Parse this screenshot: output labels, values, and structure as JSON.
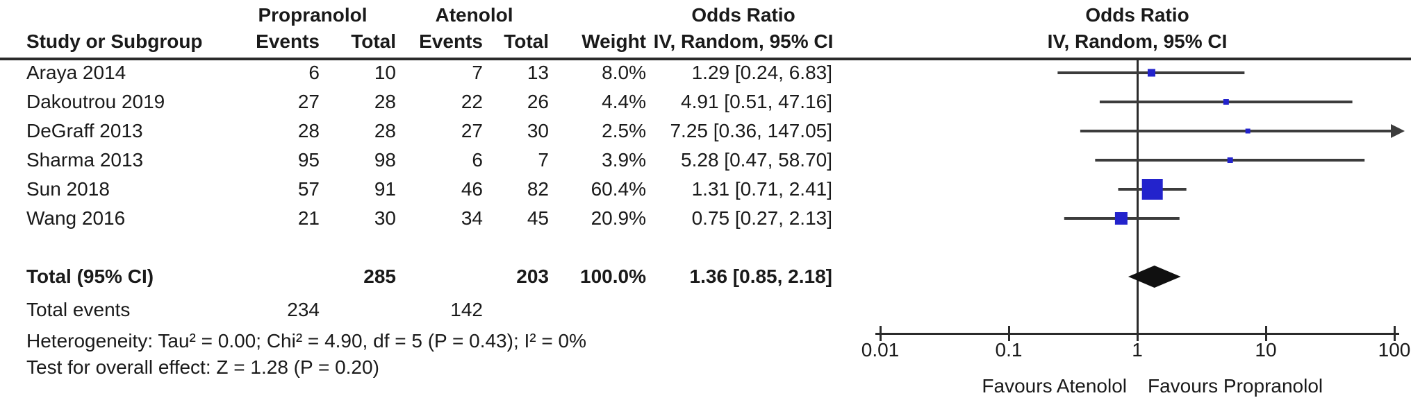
{
  "header": {
    "group1": "Propranolol",
    "group2": "Atenolol",
    "or": "Odds Ratio",
    "effect": "IV, Random, 95% CI",
    "study": "Study or Subgroup",
    "events": "Events",
    "total": "Total",
    "weight": "Weight"
  },
  "chart_data": {
    "type": "scatter",
    "subtype": "forest-plot",
    "title": "Odds Ratio",
    "effect_measure": "IV, Random, 95% CI",
    "x_scale": "log",
    "xlim": [
      0.01,
      100
    ],
    "x_ticks": [
      "0.01",
      "0.1",
      "1",
      "10",
      "100"
    ],
    "favours_left": "Favours Atenolol",
    "favours_right": "Favours Propranolol",
    "studies": [
      {
        "name": "Araya 2014",
        "events1": "6",
        "total1": "10",
        "events2": "7",
        "total2": "13",
        "weight": "8.0%",
        "weight_pct": 8.0,
        "ci_label": "1.29 [0.24, 6.83]",
        "or": 1.29,
        "ci_low": 0.24,
        "ci_high": 6.83
      },
      {
        "name": "Dakoutrou 2019",
        "events1": "27",
        "total1": "28",
        "events2": "22",
        "total2": "26",
        "weight": "4.4%",
        "weight_pct": 4.4,
        "ci_label": "4.91 [0.51, 47.16]",
        "or": 4.91,
        "ci_low": 0.51,
        "ci_high": 47.16
      },
      {
        "name": "DeGraff 2013",
        "events1": "28",
        "total1": "28",
        "events2": "27",
        "total2": "30",
        "weight": "2.5%",
        "weight_pct": 2.5,
        "ci_label": "7.25 [0.36, 147.05]",
        "or": 7.25,
        "ci_low": 0.36,
        "ci_high": 147.05
      },
      {
        "name": "Sharma 2013",
        "events1": "95",
        "total1": "98",
        "events2": "6",
        "total2": "7",
        "weight": "3.9%",
        "weight_pct": 3.9,
        "ci_label": "5.28 [0.47, 58.70]",
        "or": 5.28,
        "ci_low": 0.47,
        "ci_high": 58.7
      },
      {
        "name": "Sun 2018",
        "events1": "57",
        "total1": "91",
        "events2": "46",
        "total2": "82",
        "weight": "60.4%",
        "weight_pct": 60.4,
        "ci_label": "1.31 [0.71, 2.41]",
        "or": 1.31,
        "ci_low": 0.71,
        "ci_high": 2.41
      },
      {
        "name": "Wang 2016",
        "events1": "21",
        "total1": "30",
        "events2": "34",
        "total2": "45",
        "weight": "20.9%",
        "weight_pct": 20.9,
        "ci_label": "0.75 [0.27, 2.13]",
        "or": 0.75,
        "ci_low": 0.27,
        "ci_high": 2.13
      }
    ],
    "total": {
      "label": "Total (95% CI)",
      "total1": "285",
      "total2": "203",
      "weight": "100.0%",
      "ci_label": "1.36 [0.85, 2.18]",
      "or": 1.36,
      "ci_low": 0.85,
      "ci_high": 2.18
    },
    "total_events": {
      "label": "Total events",
      "events1": "234",
      "events2": "142"
    },
    "heterogeneity": "Heterogeneity: Tau² = 0.00; Chi² = 4.90, df = 5 (P = 0.43); I² = 0%",
    "overall_effect": "Test for overall effect: Z = 1.28 (P = 0.20)",
    "colors": {
      "marker": "#2323cc",
      "diamond": "#101010",
      "line": "#3c3c3c",
      "axis": "#2b2b2b"
    }
  }
}
